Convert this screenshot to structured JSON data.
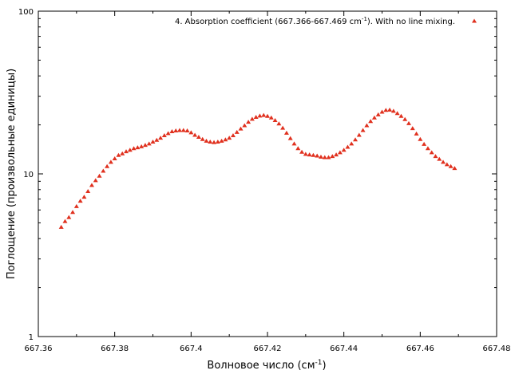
{
  "chart_data": {
    "type": "scatter",
    "title": "",
    "xlabel": "Волновое число (см",
    "xlabel_sup": "-1",
    "xlabel_suffix": ")",
    "ylabel": "Поглощение (произвольные единицы)",
    "xlim": [
      667.36,
      667.48
    ],
    "ylim": [
      1,
      100
    ],
    "yscale": "log",
    "grid": false,
    "legend_position": "top-right",
    "xticks": [
      667.36,
      667.38,
      667.4,
      667.42,
      667.44,
      667.46,
      667.48
    ],
    "xtick_labels": [
      "667.36",
      "667.38",
      "667.4",
      "667.42",
      "667.44",
      "667.46",
      "667.48"
    ],
    "yticks": [
      1,
      10,
      100
    ],
    "ytick_labels": [
      "1",
      "10",
      "100"
    ],
    "series": [
      {
        "name": "4. Absorption coefficient (667.366-667.469 cm",
        "name_sup": "-1",
        "name_suffix": "). With no line mixing.",
        "color": "#e0301e",
        "marker": "triangle",
        "x": [
          667.366,
          667.367,
          667.368,
          667.369,
          667.37,
          667.371,
          667.372,
          667.373,
          667.374,
          667.375,
          667.376,
          667.377,
          667.378,
          667.379,
          667.38,
          667.381,
          667.382,
          667.383,
          667.384,
          667.385,
          667.386,
          667.387,
          667.388,
          667.389,
          667.39,
          667.391,
          667.392,
          667.393,
          667.394,
          667.395,
          667.396,
          667.397,
          667.398,
          667.399,
          667.4,
          667.401,
          667.402,
          667.403,
          667.404,
          667.405,
          667.406,
          667.407,
          667.408,
          667.409,
          667.41,
          667.411,
          667.412,
          667.413,
          667.414,
          667.415,
          667.416,
          667.417,
          667.418,
          667.419,
          667.42,
          667.421,
          667.422,
          667.423,
          667.424,
          667.425,
          667.426,
          667.427,
          667.428,
          667.429,
          667.43,
          667.431,
          667.432,
          667.433,
          667.434,
          667.435,
          667.436,
          667.437,
          667.438,
          667.439,
          667.44,
          667.441,
          667.442,
          667.443,
          667.444,
          667.445,
          667.446,
          667.447,
          667.448,
          667.449,
          667.45,
          667.451,
          667.452,
          667.453,
          667.454,
          667.455,
          667.456,
          667.457,
          667.458,
          667.459,
          667.46,
          667.461,
          667.462,
          667.463,
          667.464,
          667.465,
          667.466,
          667.467,
          667.468,
          667.469
        ],
        "y": [
          4.7,
          5.1,
          5.4,
          5.8,
          6.3,
          6.8,
          7.2,
          7.8,
          8.5,
          9.1,
          9.7,
          10.4,
          11.1,
          11.8,
          12.4,
          13.0,
          13.3,
          13.7,
          14.0,
          14.3,
          14.5,
          14.7,
          15.0,
          15.3,
          15.7,
          16.1,
          16.6,
          17.2,
          17.7,
          18.2,
          18.4,
          18.5,
          18.5,
          18.4,
          17.9,
          17.3,
          16.8,
          16.3,
          15.9,
          15.7,
          15.6,
          15.7,
          15.9,
          16.2,
          16.6,
          17.2,
          18.0,
          18.9,
          19.8,
          20.8,
          21.7,
          22.3,
          22.7,
          22.9,
          22.6,
          22.1,
          21.3,
          20.3,
          19.1,
          17.8,
          16.5,
          15.3,
          14.3,
          13.6,
          13.2,
          13.1,
          13.0,
          12.9,
          12.7,
          12.6,
          12.6,
          12.8,
          13.1,
          13.5,
          14.0,
          14.6,
          15.3,
          16.2,
          17.3,
          18.5,
          19.8,
          21.0,
          22.1,
          23.1,
          24.0,
          24.6,
          24.7,
          24.3,
          23.5,
          22.6,
          21.6,
          20.4,
          19.0,
          17.6,
          16.3,
          15.2,
          14.3,
          13.5,
          12.8,
          12.3,
          11.8,
          11.4,
          11.1,
          10.8
        ]
      }
    ]
  }
}
